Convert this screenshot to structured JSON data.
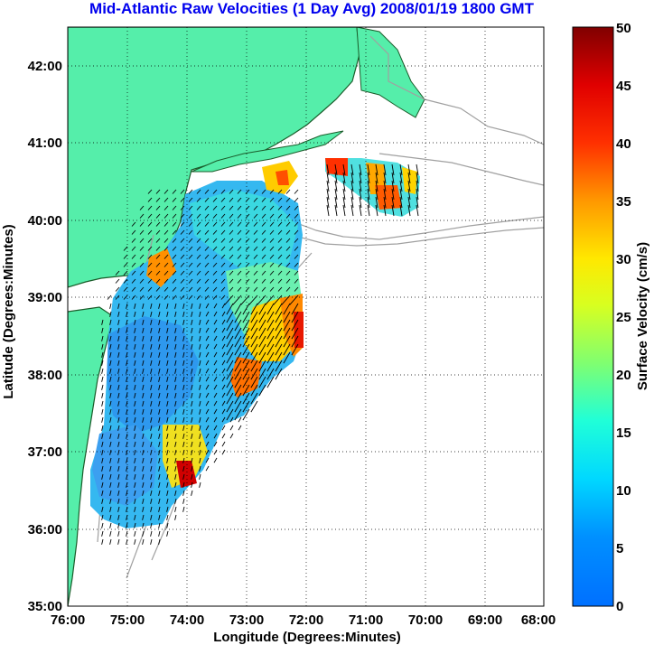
{
  "title": "Mid-Atlantic Raw Velocities (1 Day Avg) 2008/01/19 1800 GMT",
  "xlabel": "Longitude (Degrees:Minutes)",
  "ylabel": "Latitude (Degrees:Minutes)",
  "xticks": [
    "76:00",
    "75:00",
    "74:00",
    "73:00",
    "72:00",
    "71:00",
    "70:00",
    "69:00",
    "68:00"
  ],
  "yticks": [
    "42:00",
    "41:00",
    "40:00",
    "39:00",
    "38:00",
    "37:00",
    "36:00",
    "35:00"
  ],
  "colorbar": {
    "label": "Surface Velocity (cm/s)",
    "ticks": [
      "0",
      "5",
      "10",
      "15",
      "20",
      "25",
      "30",
      "35",
      "40",
      "45",
      "50"
    ],
    "min": 0,
    "max": 50
  },
  "colors": {
    "land": "#55eeaa",
    "coast": "#1a5c2a",
    "bathymetry": "#a0a0a0",
    "title": "#0000ee"
  }
}
